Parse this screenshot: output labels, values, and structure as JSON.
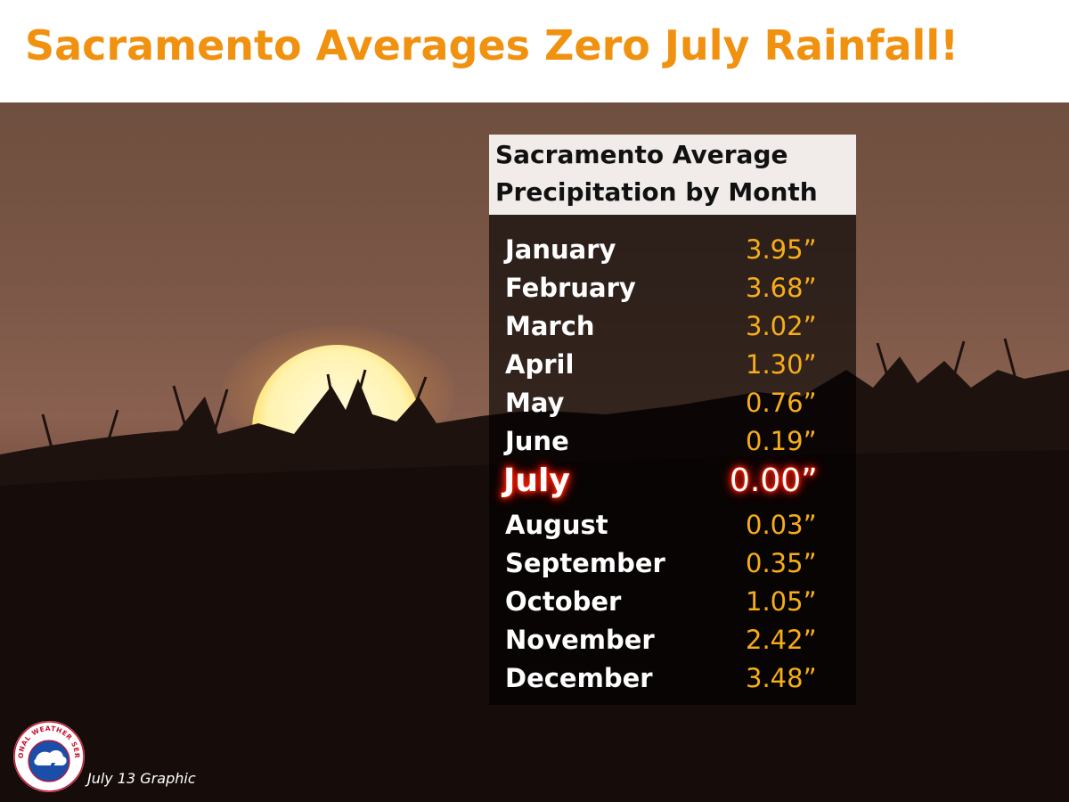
{
  "headline": "Sacramento Averages Zero July Rainfall!",
  "table": {
    "title_line1": "Sacramento Average",
    "title_line2": "Precipitation by Month",
    "rows": [
      {
        "month": "January",
        "value": "3.95”"
      },
      {
        "month": "February",
        "value": "3.68”"
      },
      {
        "month": "March",
        "value": "3.02”"
      },
      {
        "month": "April",
        "value": "1.30”"
      },
      {
        "month": "May",
        "value": "0.76”"
      },
      {
        "month": "June",
        "value": "0.19”"
      },
      {
        "month": "July",
        "value": "0.00”",
        "highlight": true
      },
      {
        "month": "August",
        "value": "0.03”"
      },
      {
        "month": "September",
        "value": "0.35”"
      },
      {
        "month": "October",
        "value": "1.05”"
      },
      {
        "month": "November",
        "value": "2.42”"
      },
      {
        "month": "December",
        "value": "3.48”"
      }
    ]
  },
  "logo": {
    "icon": "national-weather-service-logo",
    "text": "NATIONAL WEATHER SERVICE"
  },
  "caption": "July 13 Graphic",
  "colors": {
    "headline": "#f0910f",
    "value": "#f6ad1a",
    "highlight_glow": "#ff1a00",
    "title_bar": "#f1ebe9"
  }
}
